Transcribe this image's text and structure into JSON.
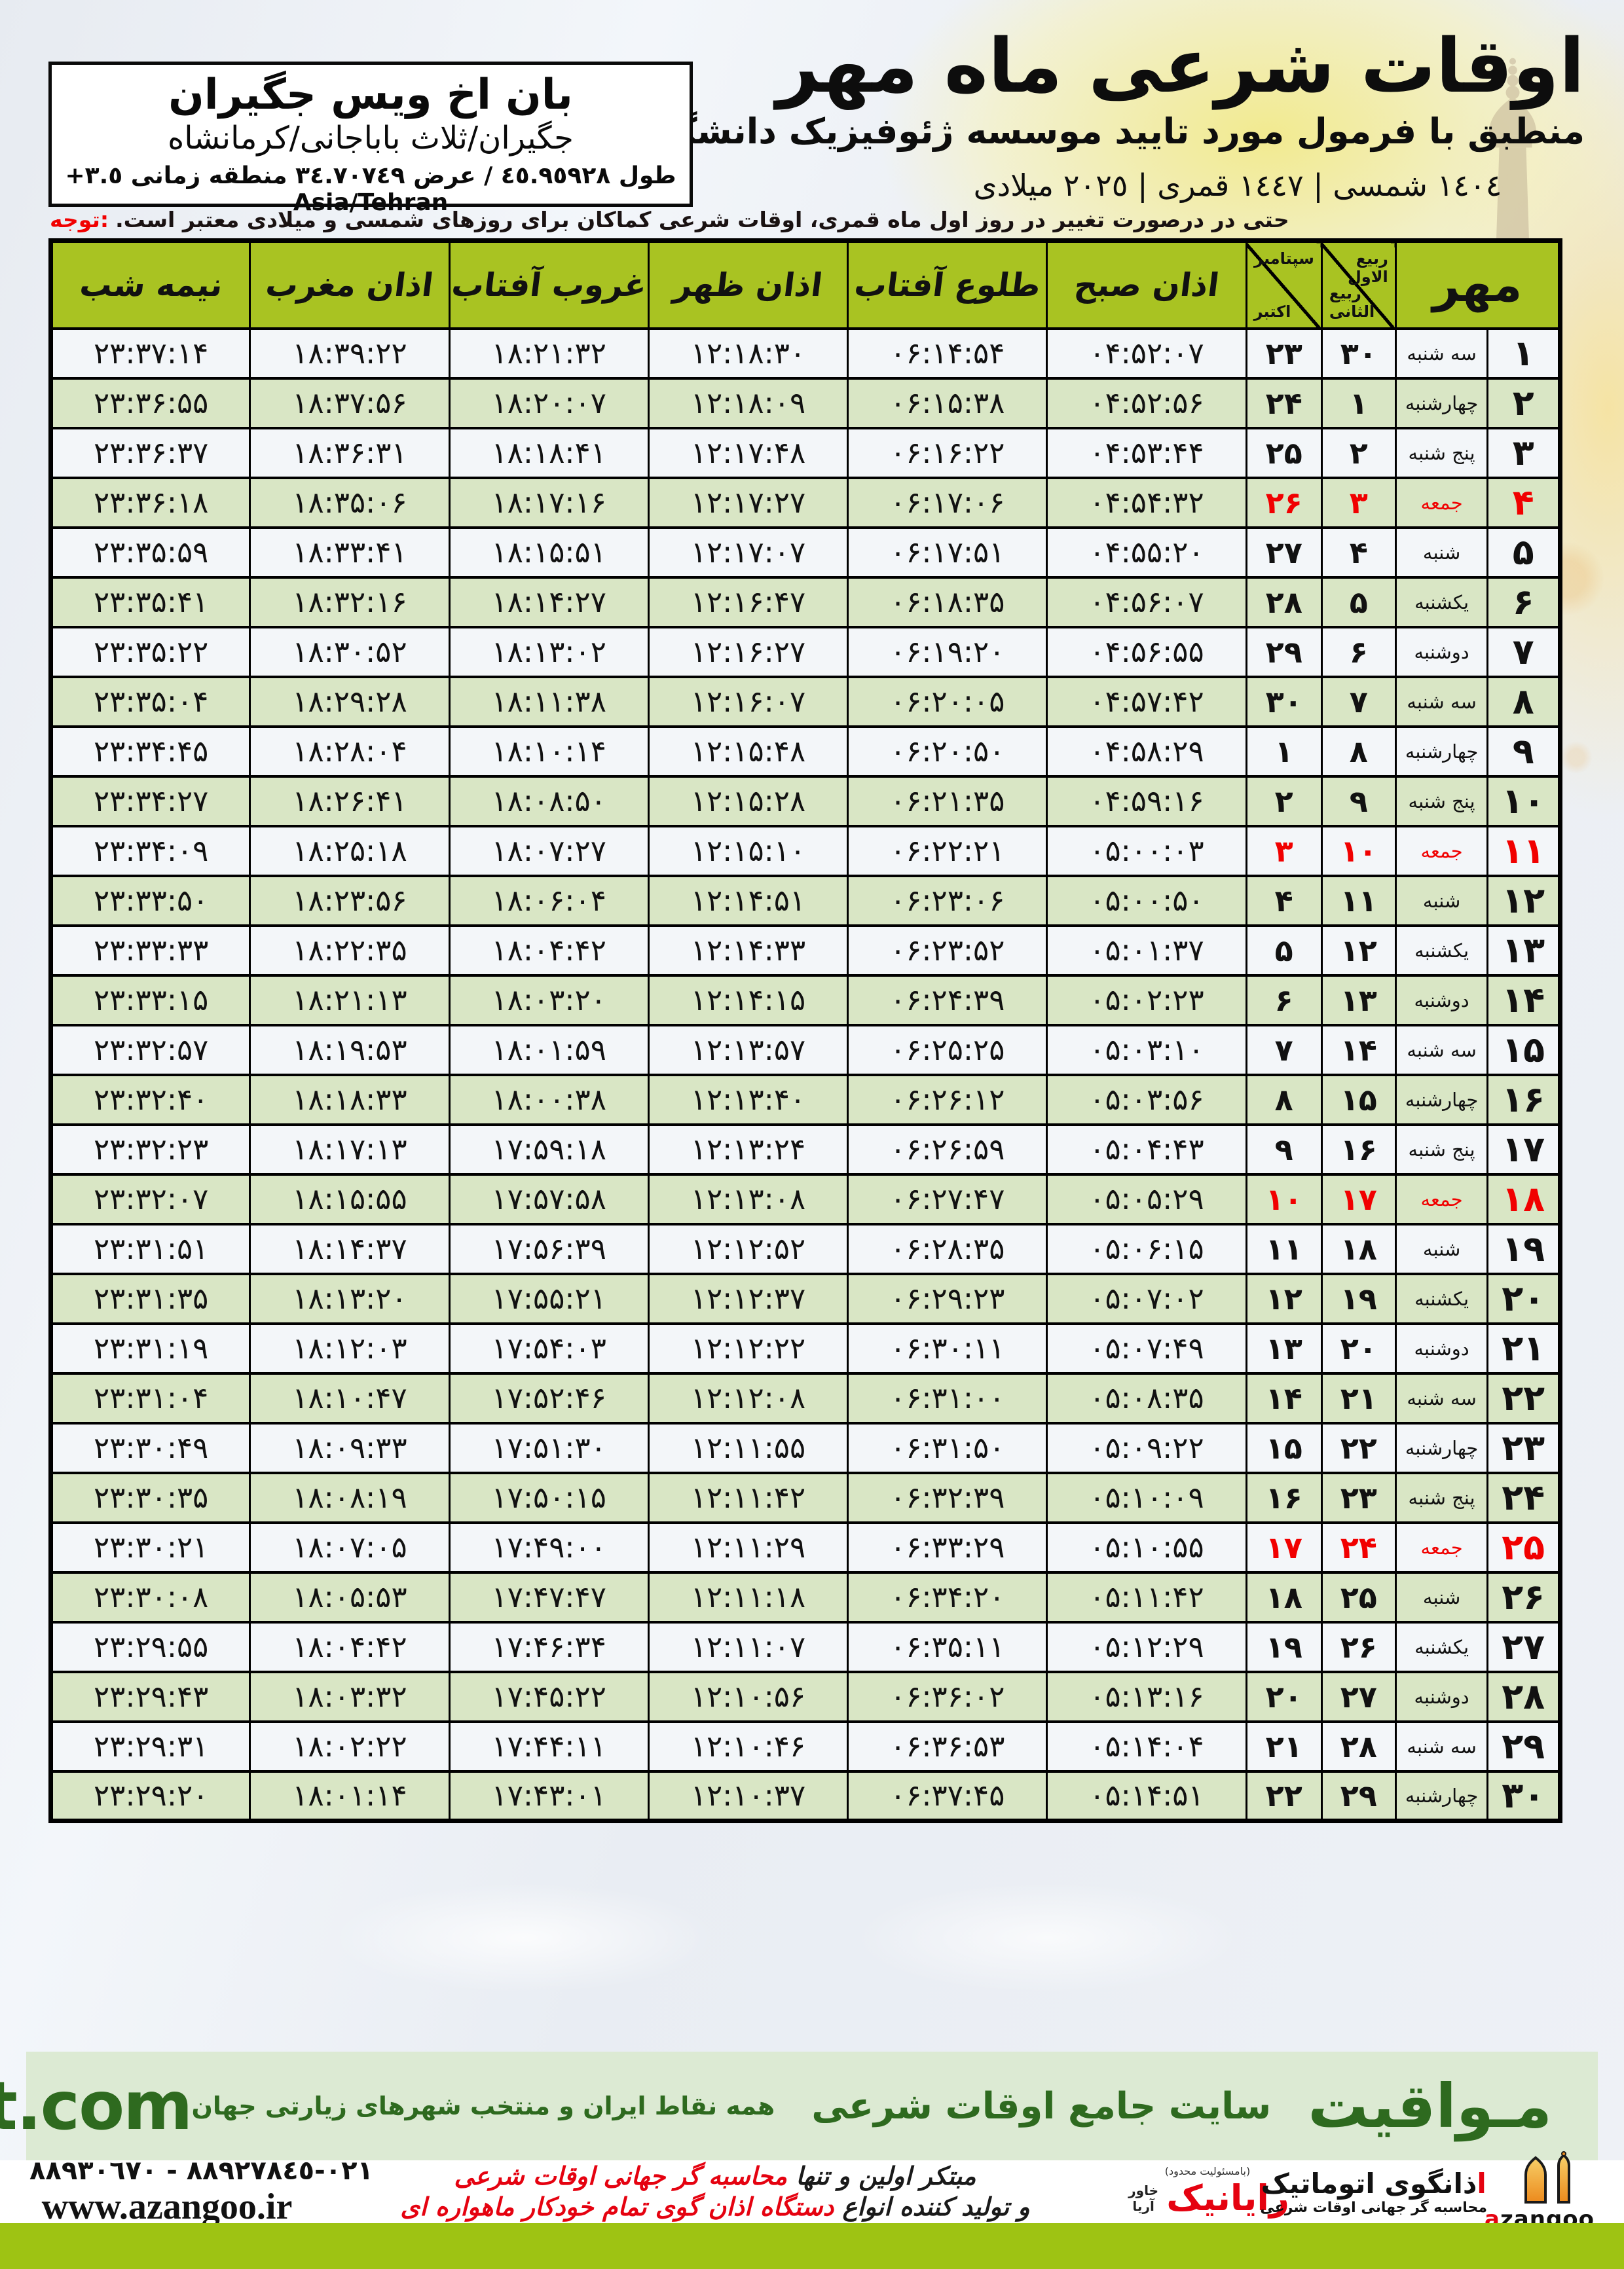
{
  "header": {
    "title": "اوقات شرعی ماه مهر",
    "subtitle": "منطبق با فرمول مورد تایید موسسه ژئوفیزیک دانشگاه تهران",
    "years": "١٤٠٤ شمسی | ١٤٤٧ قمری | ٢٠٢٥ میلادی"
  },
  "location_box": {
    "name": "بان اخ ویس جگیران",
    "region": "جگیران/ثلاث باباجانی/کرمانشاه",
    "coordinates": "طول ٤٥.٩٥٩٢٨ / عرض ٣٤.٧٠٧٤٩ منطقه زمانی ٣.٥+ Asia/Tehran"
  },
  "note": {
    "label": "توجه:",
    "text": "حتی در درصورت تغییر در روز اول ماه قمری، اوقات شرعی کماکان برای روزهای شمسی و میلادی معتبر است."
  },
  "table": {
    "month_label": "مهر",
    "lunar_header_top": "ربیع الاول",
    "lunar_header_bottom": "ربیع الثانی",
    "greg_header_top": "سپتامبر",
    "greg_header_bottom": "اکتبر",
    "columns": [
      "اذان صبح",
      "طلوع آفتاب",
      "اذان ظهر",
      "غروب آفتاب",
      "اذان مغرب",
      "نیمه شب"
    ],
    "rows": [
      {
        "day": "۱",
        "weekday": "سه شنبه",
        "lunar": "۳۰",
        "greg": "۲۳",
        "friday": false,
        "times": [
          "۰۴:۵۲:۰۷",
          "۰۶:۱۴:۵۴",
          "۱۲:۱۸:۳۰",
          "۱۸:۲۱:۳۲",
          "۱۸:۳۹:۲۲",
          "۲۳:۳۷:۱۴"
        ]
      },
      {
        "day": "۲",
        "weekday": "چهارشنبه",
        "lunar": "۱",
        "greg": "۲۴",
        "friday": false,
        "times": [
          "۰۴:۵۲:۵۶",
          "۰۶:۱۵:۳۸",
          "۱۲:۱۸:۰۹",
          "۱۸:۲۰:۰۷",
          "۱۸:۳۷:۵۶",
          "۲۳:۳۶:۵۵"
        ]
      },
      {
        "day": "۳",
        "weekday": "پنج شنبه",
        "lunar": "۲",
        "greg": "۲۵",
        "friday": false,
        "times": [
          "۰۴:۵۳:۴۴",
          "۰۶:۱۶:۲۲",
          "۱۲:۱۷:۴۸",
          "۱۸:۱۸:۴۱",
          "۱۸:۳۶:۳۱",
          "۲۳:۳۶:۳۷"
        ]
      },
      {
        "day": "۴",
        "weekday": "جمعه",
        "lunar": "۳",
        "greg": "۲۶",
        "friday": true,
        "times": [
          "۰۴:۵۴:۳۲",
          "۰۶:۱۷:۰۶",
          "۱۲:۱۷:۲۷",
          "۱۸:۱۷:۱۶",
          "۱۸:۳۵:۰۶",
          "۲۳:۳۶:۱۸"
        ]
      },
      {
        "day": "۵",
        "weekday": "شنبه",
        "lunar": "۴",
        "greg": "۲۷",
        "friday": false,
        "times": [
          "۰۴:۵۵:۲۰",
          "۰۶:۱۷:۵۱",
          "۱۲:۱۷:۰۷",
          "۱۸:۱۵:۵۱",
          "۱۸:۳۳:۴۱",
          "۲۳:۳۵:۵۹"
        ]
      },
      {
        "day": "۶",
        "weekday": "یکشنبه",
        "lunar": "۵",
        "greg": "۲۸",
        "friday": false,
        "times": [
          "۰۴:۵۶:۰۷",
          "۰۶:۱۸:۳۵",
          "۱۲:۱۶:۴۷",
          "۱۸:۱۴:۲۷",
          "۱۸:۳۲:۱۶",
          "۲۳:۳۵:۴۱"
        ]
      },
      {
        "day": "۷",
        "weekday": "دوشنبه",
        "lunar": "۶",
        "greg": "۲۹",
        "friday": false,
        "times": [
          "۰۴:۵۶:۵۵",
          "۰۶:۱۹:۲۰",
          "۱۲:۱۶:۲۷",
          "۱۸:۱۳:۰۲",
          "۱۸:۳۰:۵۲",
          "۲۳:۳۵:۲۲"
        ]
      },
      {
        "day": "۸",
        "weekday": "سه شنبه",
        "lunar": "۷",
        "greg": "۳۰",
        "friday": false,
        "times": [
          "۰۴:۵۷:۴۲",
          "۰۶:۲۰:۰۵",
          "۱۲:۱۶:۰۷",
          "۱۸:۱۱:۳۸",
          "۱۸:۲۹:۲۸",
          "۲۳:۳۵:۰۴"
        ]
      },
      {
        "day": "۹",
        "weekday": "چهارشنبه",
        "lunar": "۸",
        "greg": "۱",
        "friday": false,
        "times": [
          "۰۴:۵۸:۲۹",
          "۰۶:۲۰:۵۰",
          "۱۲:۱۵:۴۸",
          "۱۸:۱۰:۱۴",
          "۱۸:۲۸:۰۴",
          "۲۳:۳۴:۴۵"
        ]
      },
      {
        "day": "۱۰",
        "weekday": "پنج شنبه",
        "lunar": "۹",
        "greg": "۲",
        "friday": false,
        "times": [
          "۰۴:۵۹:۱۶",
          "۰۶:۲۱:۳۵",
          "۱۲:۱۵:۲۸",
          "۱۸:۰۸:۵۰",
          "۱۸:۲۶:۴۱",
          "۲۳:۳۴:۲۷"
        ]
      },
      {
        "day": "۱۱",
        "weekday": "جمعه",
        "lunar": "۱۰",
        "greg": "۳",
        "friday": true,
        "times": [
          "۰۵:۰۰:۰۳",
          "۰۶:۲۲:۲۱",
          "۱۲:۱۵:۱۰",
          "۱۸:۰۷:۲۷",
          "۱۸:۲۵:۱۸",
          "۲۳:۳۴:۰۹"
        ]
      },
      {
        "day": "۱۲",
        "weekday": "شنبه",
        "lunar": "۱۱",
        "greg": "۴",
        "friday": false,
        "times": [
          "۰۵:۰۰:۵۰",
          "۰۶:۲۳:۰۶",
          "۱۲:۱۴:۵۱",
          "۱۸:۰۶:۰۴",
          "۱۸:۲۳:۵۶",
          "۲۳:۳۳:۵۰"
        ]
      },
      {
        "day": "۱۳",
        "weekday": "یکشنبه",
        "lunar": "۱۲",
        "greg": "۵",
        "friday": false,
        "times": [
          "۰۵:۰۱:۳۷",
          "۰۶:۲۳:۵۲",
          "۱۲:۱۴:۳۳",
          "۱۸:۰۴:۴۲",
          "۱۸:۲۲:۳۵",
          "۲۳:۳۳:۳۳"
        ]
      },
      {
        "day": "۱۴",
        "weekday": "دوشنبه",
        "lunar": "۱۳",
        "greg": "۶",
        "friday": false,
        "times": [
          "۰۵:۰۲:۲۳",
          "۰۶:۲۴:۳۹",
          "۱۲:۱۴:۱۵",
          "۱۸:۰۳:۲۰",
          "۱۸:۲۱:۱۳",
          "۲۳:۳۳:۱۵"
        ]
      },
      {
        "day": "۱۵",
        "weekday": "سه شنبه",
        "lunar": "۱۴",
        "greg": "۷",
        "friday": false,
        "times": [
          "۰۵:۰۳:۱۰",
          "۰۶:۲۵:۲۵",
          "۱۲:۱۳:۵۷",
          "۱۸:۰۱:۵۹",
          "۱۸:۱۹:۵۳",
          "۲۳:۳۲:۵۷"
        ]
      },
      {
        "day": "۱۶",
        "weekday": "چهارشنبه",
        "lunar": "۱۵",
        "greg": "۸",
        "friday": false,
        "times": [
          "۰۵:۰۳:۵۶",
          "۰۶:۲۶:۱۲",
          "۱۲:۱۳:۴۰",
          "۱۸:۰۰:۳۸",
          "۱۸:۱۸:۳۳",
          "۲۳:۳۲:۴۰"
        ]
      },
      {
        "day": "۱۷",
        "weekday": "پنج شنبه",
        "lunar": "۱۶",
        "greg": "۹",
        "friday": false,
        "times": [
          "۰۵:۰۴:۴۳",
          "۰۶:۲۶:۵۹",
          "۱۲:۱۳:۲۴",
          "۱۷:۵۹:۱۸",
          "۱۸:۱۷:۱۳",
          "۲۳:۳۲:۲۳"
        ]
      },
      {
        "day": "۱۸",
        "weekday": "جمعه",
        "lunar": "۱۷",
        "greg": "۱۰",
        "friday": true,
        "times": [
          "۰۵:۰۵:۲۹",
          "۰۶:۲۷:۴۷",
          "۱۲:۱۳:۰۸",
          "۱۷:۵۷:۵۸",
          "۱۸:۱۵:۵۵",
          "۲۳:۳۲:۰۷"
        ]
      },
      {
        "day": "۱۹",
        "weekday": "شنبه",
        "lunar": "۱۸",
        "greg": "۱۱",
        "friday": false,
        "times": [
          "۰۵:۰۶:۱۵",
          "۰۶:۲۸:۳۵",
          "۱۲:۱۲:۵۲",
          "۱۷:۵۶:۳۹",
          "۱۸:۱۴:۳۷",
          "۲۳:۳۱:۵۱"
        ]
      },
      {
        "day": "۲۰",
        "weekday": "یکشنبه",
        "lunar": "۱۹",
        "greg": "۱۲",
        "friday": false,
        "times": [
          "۰۵:۰۷:۰۲",
          "۰۶:۲۹:۲۳",
          "۱۲:۱۲:۳۷",
          "۱۷:۵۵:۲۱",
          "۱۸:۱۳:۲۰",
          "۲۳:۳۱:۳۵"
        ]
      },
      {
        "day": "۲۱",
        "weekday": "دوشنبه",
        "lunar": "۲۰",
        "greg": "۱۳",
        "friday": false,
        "times": [
          "۰۵:۰۷:۴۹",
          "۰۶:۳۰:۱۱",
          "۱۲:۱۲:۲۲",
          "۱۷:۵۴:۰۳",
          "۱۸:۱۲:۰۳",
          "۲۳:۳۱:۱۹"
        ]
      },
      {
        "day": "۲۲",
        "weekday": "سه شنبه",
        "lunar": "۲۱",
        "greg": "۱۴",
        "friday": false,
        "times": [
          "۰۵:۰۸:۳۵",
          "۰۶:۳۱:۰۰",
          "۱۲:۱۲:۰۸",
          "۱۷:۵۲:۴۶",
          "۱۸:۱۰:۴۷",
          "۲۳:۳۱:۰۴"
        ]
      },
      {
        "day": "۲۳",
        "weekday": "چهارشنبه",
        "lunar": "۲۲",
        "greg": "۱۵",
        "friday": false,
        "times": [
          "۰۵:۰۹:۲۲",
          "۰۶:۳۱:۵۰",
          "۱۲:۱۱:۵۵",
          "۱۷:۵۱:۳۰",
          "۱۸:۰۹:۳۳",
          "۲۳:۳۰:۴۹"
        ]
      },
      {
        "day": "۲۴",
        "weekday": "پنج شنبه",
        "lunar": "۲۳",
        "greg": "۱۶",
        "friday": false,
        "times": [
          "۰۵:۱۰:۰۹",
          "۰۶:۳۲:۳۹",
          "۱۲:۱۱:۴۲",
          "۱۷:۵۰:۱۵",
          "۱۸:۰۸:۱۹",
          "۲۳:۳۰:۳۵"
        ]
      },
      {
        "day": "۲۵",
        "weekday": "جمعه",
        "lunar": "۲۴",
        "greg": "۱۷",
        "friday": true,
        "times": [
          "۰۵:۱۰:۵۵",
          "۰۶:۳۳:۲۹",
          "۱۲:۱۱:۲۹",
          "۱۷:۴۹:۰۰",
          "۱۸:۰۷:۰۵",
          "۲۳:۳۰:۲۱"
        ]
      },
      {
        "day": "۲۶",
        "weekday": "شنبه",
        "lunar": "۲۵",
        "greg": "۱۸",
        "friday": false,
        "times": [
          "۰۵:۱۱:۴۲",
          "۰۶:۳۴:۲۰",
          "۱۲:۱۱:۱۸",
          "۱۷:۴۷:۴۷",
          "۱۸:۰۵:۵۳",
          "۲۳:۳۰:۰۸"
        ]
      },
      {
        "day": "۲۷",
        "weekday": "یکشنبه",
        "lunar": "۲۶",
        "greg": "۱۹",
        "friday": false,
        "times": [
          "۰۵:۱۲:۲۹",
          "۰۶:۳۵:۱۱",
          "۱۲:۱۱:۰۷",
          "۱۷:۴۶:۳۴",
          "۱۸:۰۴:۴۲",
          "۲۳:۲۹:۵۵"
        ]
      },
      {
        "day": "۲۸",
        "weekday": "دوشنبه",
        "lunar": "۲۷",
        "greg": "۲۰",
        "friday": false,
        "times": [
          "۰۵:۱۳:۱۶",
          "۰۶:۳۶:۰۲",
          "۱۲:۱۰:۵۶",
          "۱۷:۴۵:۲۲",
          "۱۸:۰۳:۳۲",
          "۲۳:۲۹:۴۳"
        ]
      },
      {
        "day": "۲۹",
        "weekday": "سه شنبه",
        "lunar": "۲۸",
        "greg": "۲۱",
        "friday": false,
        "times": [
          "۰۵:۱۴:۰۴",
          "۰۶:۳۶:۵۳",
          "۱۲:۱۰:۴۶",
          "۱۷:۴۴:۱۱",
          "۱۸:۰۲:۲۲",
          "۲۳:۲۹:۳۱"
        ]
      },
      {
        "day": "۳۰",
        "weekday": "چهارشنبه",
        "lunar": "۲۹",
        "greg": "۲۲",
        "friday": false,
        "times": [
          "۰۵:۱۴:۵۱",
          "۰۶:۳۷:۴۵",
          "۱۲:۱۰:۳۷",
          "۱۷:۴۳:۰۱",
          "۱۸:۰۱:۱۴",
          "۲۳:۲۹:۲۰"
        ]
      }
    ]
  },
  "mavaqeet_band": {
    "brand": "مـواقیت",
    "site_label": "سایت جامع اوقات شرعی",
    "tagline": "همه نقاط ایران و منتخب شهرهای زیارتی جهان",
    "url": "mavaqeet.com"
  },
  "footer": {
    "phones": "٠٢١-٨٨٩٢٧٨٤٥ - ٨٨٩٣٠٦٧٠",
    "website": "www.azangoo.ir",
    "slogan1_black": "مبتکر اولین و تنها ",
    "slogan1_red": "محاسبه گر جهانی اوقات شرعی",
    "slogan2_black": "و تولید کننده انواع ",
    "slogan2_red": "دستگاه اذان گوی تمام خودکار ماهواره ای",
    "rayanik_small": "(بامسئولیت محدود)",
    "rayanik_name": "رایانیک",
    "rayanik_side": "خاور آریا",
    "azangoo_title_first": "ا",
    "azangoo_title_rest": "ذانگوی اتوماتیک",
    "azangoo_subtitle": "محاسبه گر جهانی اوقات شرعی",
    "azangoo_wordmark_first": "a",
    "azangoo_wordmark_rest": "zangoo"
  },
  "colors": {
    "header_green": "#a9c322",
    "row_green": "#d9e6c5",
    "row_light": "#f3f6f9",
    "friday_red": "#f10000",
    "band_bg": "#dcead3",
    "band_green": "#2e6a1f",
    "bottom_band": "#9ec313",
    "logo_orange": "#ef9227"
  }
}
